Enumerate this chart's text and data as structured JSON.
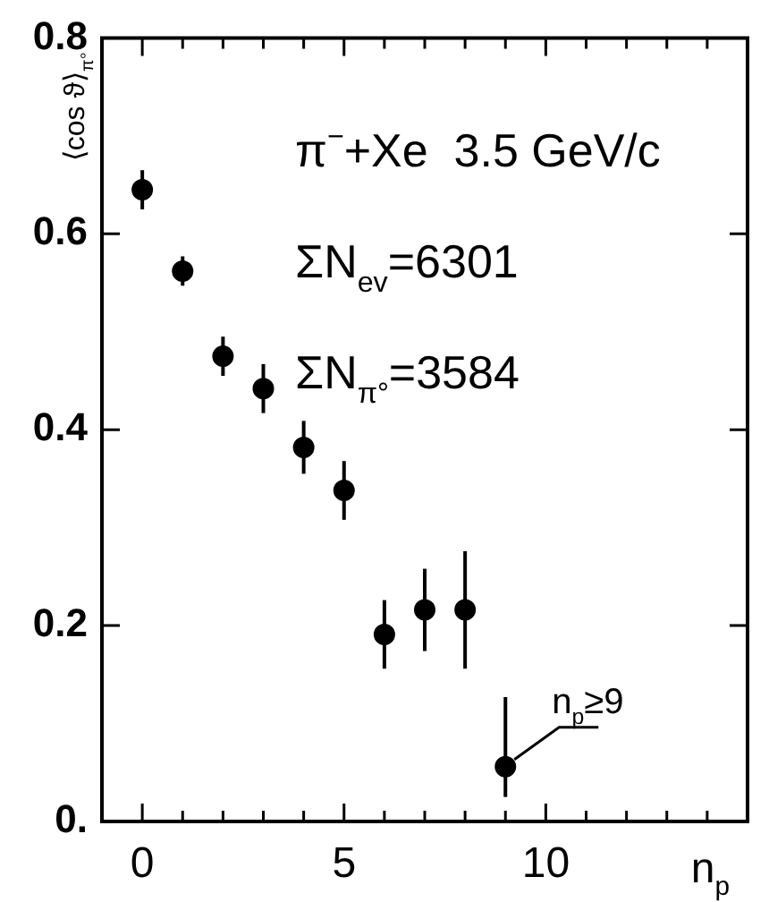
{
  "chart_data": {
    "type": "scatter",
    "xlabel": "n$_{p}$",
    "ylabel": "⟨cos ϑ⟩$_{π°}$",
    "annotations": [
      "π$^{−}$+Xe  3.5 GeV/c",
      "ΣN$_{ev}$=6301",
      "ΣN$_{π°}$=3584",
      {
        "text": "n$_{p}$≥9",
        "x": 9,
        "y": 0.056
      }
    ],
    "series": [
      {
        "color": "#000000",
        "marker": "circle",
        "x": [
          0,
          1,
          2,
          3,
          4,
          5,
          6,
          7,
          8,
          9
        ],
        "values": [
          0.645,
          0.562,
          0.475,
          0.442,
          0.382,
          0.338,
          0.191,
          0.216,
          0.216,
          0.056
        ],
        "errors": [
          0.02,
          0.015,
          0.02,
          0.025,
          0.027,
          0.03,
          0.035,
          0.042,
          0.06,
          [
            0.025,
            0.127
          ]
        ]
      }
    ],
    "xlim": [
      -1,
      15
    ],
    "xticks": [
      0,
      {
        "value": 1,
        "label": null
      },
      {
        "value": 2,
        "label": null
      },
      {
        "value": 3,
        "label": null
      },
      {
        "value": 4,
        "label": null
      },
      5,
      {
        "value": 6,
        "label": null
      },
      {
        "value": 7,
        "label": null
      },
      {
        "value": 8,
        "label": null
      },
      {
        "value": 9,
        "label": null
      },
      10,
      {
        "value": 11,
        "label": null
      },
      {
        "value": 12,
        "label": null
      },
      {
        "value": 13,
        "label": null
      },
      {
        "value": 14,
        "label": null
      }
    ],
    "ylim": [
      0,
      0.8
    ],
    "yticks": [
      {
        "value": 0,
        "label": "0."
      },
      0.2,
      0.4,
      0.6,
      0.8
    ],
    "grid": false,
    "legend": false
  }
}
